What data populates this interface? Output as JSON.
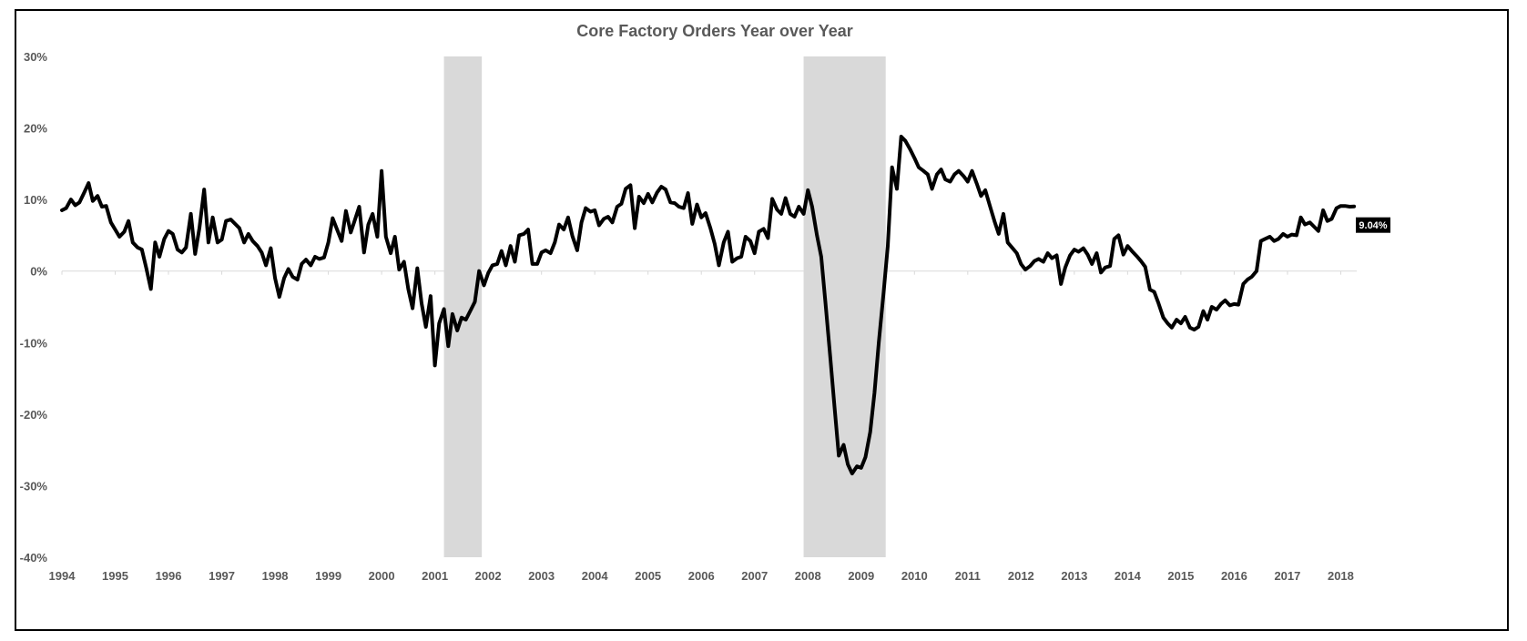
{
  "chart_data": {
    "type": "line",
    "title": "Core Factory Orders Year over Year",
    "xlabel": "",
    "ylabel": "",
    "ylim": [
      -40,
      30
    ],
    "y_ticks": [
      "30%",
      "20%",
      "10%",
      "0%",
      "-10%",
      "-20%",
      "-30%",
      "-40%"
    ],
    "x_ticks": [
      "1994",
      "1995",
      "1996",
      "1997",
      "1998",
      "1999",
      "2000",
      "2001",
      "2002",
      "2003",
      "2004",
      "2005",
      "2006",
      "2007",
      "2008",
      "2009",
      "2010",
      "2011",
      "2012",
      "2013",
      "2014",
      "2015",
      "2016",
      "2017",
      "2018"
    ],
    "xlim": [
      1994.0,
      2018.3
    ],
    "grid": false,
    "legend": "none",
    "line_color": "#000000",
    "recession_color": "#d9d9d9",
    "recessions": [
      [
        2001.17,
        2001.88
      ],
      [
        2007.92,
        2009.46
      ]
    ],
    "last_value_label": "9.04%",
    "series": [
      {
        "x": [
          1994.0,
          1994.08,
          1994.17,
          1994.25,
          1994.33,
          1994.42,
          1994.5,
          1994.58,
          1994.67,
          1994.75,
          1994.83,
          1994.92,
          1995.0,
          1995.08,
          1995.17,
          1995.25,
          1995.33,
          1995.42,
          1995.5,
          1995.58,
          1995.67,
          1995.75,
          1995.83,
          1995.92,
          1996.0,
          1996.08,
          1996.17,
          1996.25,
          1996.33,
          1996.42,
          1996.5,
          1996.58,
          1996.67,
          1996.75,
          1996.83,
          1996.92,
          1997.0,
          1997.08,
          1997.17,
          1997.25,
          1997.33,
          1997.42,
          1997.5,
          1997.58,
          1997.67,
          1997.75,
          1997.83,
          1997.92,
          1998.0,
          1998.08,
          1998.17,
          1998.25,
          1998.33,
          1998.42,
          1998.5,
          1998.58,
          1998.67,
          1998.75,
          1998.83,
          1998.92,
          1999.0,
          1999.08,
          1999.17,
          1999.25,
          1999.33,
          1999.42,
          1999.5,
          1999.58,
          1999.67,
          1999.75,
          1999.83,
          1999.92,
          2000.0,
          2000.08,
          2000.17,
          2000.25,
          2000.33,
          2000.42,
          2000.5,
          2000.58,
          2000.67,
          2000.75,
          2000.83,
          2000.92,
          2001.0,
          2001.08,
          2001.17,
          2001.25,
          2001.33,
          2001.42,
          2001.5,
          2001.58,
          2001.67,
          2001.75,
          2001.83,
          2001.92,
          2002.0,
          2002.08,
          2002.17,
          2002.25,
          2002.33,
          2002.42,
          2002.5,
          2002.58,
          2002.67,
          2002.75,
          2002.83,
          2002.92,
          2003.0,
          2003.08,
          2003.17,
          2003.25,
          2003.33,
          2003.42,
          2003.5,
          2003.58,
          2003.67,
          2003.75,
          2003.83,
          2003.92,
          2004.0,
          2004.08,
          2004.17,
          2004.25,
          2004.33,
          2004.42,
          2004.5,
          2004.58,
          2004.67,
          2004.75,
          2004.83,
          2004.92,
          2005.0,
          2005.08,
          2005.17,
          2005.25,
          2005.33,
          2005.42,
          2005.5,
          2005.58,
          2005.67,
          2005.75,
          2005.83,
          2005.92,
          2006.0,
          2006.08,
          2006.17,
          2006.25,
          2006.33,
          2006.42,
          2006.5,
          2006.58,
          2006.67,
          2006.75,
          2006.83,
          2006.92,
          2007.0,
          2007.08,
          2007.17,
          2007.25,
          2007.33,
          2007.42,
          2007.5,
          2007.58,
          2007.67,
          2007.75,
          2007.83,
          2007.92,
          2008.0,
          2008.08,
          2008.17,
          2008.25,
          2008.33,
          2008.42,
          2008.5,
          2008.58,
          2008.67,
          2008.75,
          2008.83,
          2008.92,
          2009.0,
          2009.08,
          2009.17,
          2009.25,
          2009.33,
          2009.42,
          2009.5,
          2009.58,
          2009.67,
          2009.75,
          2009.83,
          2009.92,
          2010.0,
          2010.08,
          2010.17,
          2010.25,
          2010.33,
          2010.42,
          2010.5,
          2010.58,
          2010.67,
          2010.75,
          2010.83,
          2010.92,
          2011.0,
          2011.08,
          2011.17,
          2011.25,
          2011.33,
          2011.42,
          2011.5,
          2011.58,
          2011.67,
          2011.75,
          2011.83,
          2011.92,
          2012.0,
          2012.08,
          2012.17,
          2012.25,
          2012.33,
          2012.42,
          2012.5,
          2012.58,
          2012.67,
          2012.75,
          2012.83,
          2012.92,
          2013.0,
          2013.08,
          2013.17,
          2013.25,
          2013.33,
          2013.42,
          2013.5,
          2013.58,
          2013.67,
          2013.75,
          2013.83,
          2013.92,
          2014.0,
          2014.08,
          2014.17,
          2014.25,
          2014.33,
          2014.42,
          2014.5,
          2014.58,
          2014.67,
          2014.75,
          2014.83,
          2014.92,
          2015.0,
          2015.08,
          2015.17,
          2015.25,
          2015.33,
          2015.42,
          2015.5,
          2015.58,
          2015.67,
          2015.75,
          2015.83,
          2015.92,
          2016.0,
          2016.08,
          2016.17,
          2016.25,
          2016.33,
          2016.42,
          2016.5,
          2016.58,
          2016.67,
          2016.75,
          2016.83,
          2016.92,
          2017.0,
          2017.08,
          2017.17,
          2017.25,
          2017.33,
          2017.42,
          2017.5,
          2017.58,
          2017.67,
          2017.75,
          2017.83,
          2017.92,
          2018.0,
          2018.08,
          2018.17,
          2018.25
        ],
        "y": [
          8.5,
          8.8,
          10.0,
          9.2,
          9.6,
          11.0,
          12.3,
          9.8,
          10.5,
          9.0,
          9.1,
          6.8,
          5.8,
          4.8,
          5.5,
          7.0,
          4.0,
          3.3,
          3.0,
          0.5,
          -2.5,
          4.0,
          2.0,
          4.5,
          5.6,
          5.2,
          3.0,
          2.6,
          3.3,
          8.0,
          2.4,
          6.0,
          11.4,
          4.0,
          7.5,
          4.0,
          4.4,
          7.0,
          7.2,
          6.6,
          6.0,
          4.0,
          5.2,
          4.2,
          3.5,
          2.6,
          0.8,
          3.2,
          -1.0,
          -3.6,
          -1.0,
          0.3,
          -0.8,
          -1.2,
          1.0,
          1.6,
          0.8,
          2.0,
          1.7,
          1.9,
          4.0,
          7.4,
          5.7,
          4.2,
          8.4,
          5.4,
          7.2,
          9.0,
          2.6,
          6.5,
          8.0,
          4.8,
          14.0,
          4.8,
          2.5,
          4.8,
          0.2,
          1.3,
          -2.5,
          -5.2,
          0.4,
          -4.5,
          -7.8,
          -3.5,
          -13.2,
          -7.3,
          -5.3,
          -10.5,
          -6.0,
          -8.3,
          -6.5,
          -6.8,
          -5.5,
          -4.3,
          0.0,
          -2.0,
          -0.3,
          0.8,
          1.0,
          2.8,
          0.8,
          3.5,
          1.3,
          5.0,
          5.2,
          5.8,
          1.0,
          1.0,
          2.6,
          2.9,
          2.5,
          4.0,
          6.5,
          5.8,
          7.5,
          4.9,
          2.9,
          6.8,
          8.8,
          8.3,
          8.5,
          6.4,
          7.3,
          7.6,
          6.8,
          9.0,
          9.4,
          11.5,
          12.0,
          6.0,
          10.4,
          9.5,
          10.8,
          9.6,
          11.0,
          11.8,
          11.4,
          9.6,
          9.5,
          9.0,
          8.8,
          10.9,
          6.6,
          9.3,
          7.5,
          8.1,
          6.0,
          3.8,
          0.8,
          4.0,
          5.5,
          1.3,
          1.8,
          2.0,
          4.8,
          4.2,
          2.5,
          5.5,
          5.9,
          4.6,
          10.1,
          8.6,
          8.0,
          10.2,
          8.0,
          7.6,
          9.0,
          8.0,
          11.3,
          9.0,
          5.0,
          2.0,
          -4.5,
          -12.0,
          -19.0,
          -25.8,
          -24.3,
          -27.0,
          -28.3,
          -27.3,
          -27.5,
          -26.0,
          -22.5,
          -17.0,
          -10.0,
          -3.0,
          3.5,
          14.5,
          11.5,
          18.8,
          18.2,
          17.0,
          15.8,
          14.5,
          14.0,
          13.5,
          11.5,
          13.5,
          14.2,
          12.8,
          12.5,
          13.5,
          14.0,
          13.3,
          12.5,
          14.0,
          12.2,
          10.5,
          11.3,
          9.0,
          7.0,
          5.2,
          8.0,
          4.0,
          3.3,
          2.5,
          1.0,
          0.2,
          0.7,
          1.4,
          1.7,
          1.3,
          2.5,
          1.8,
          2.2,
          -1.8,
          0.5,
          2.2,
          3.0,
          2.7,
          3.2,
          2.3,
          1.0,
          2.5,
          -0.2,
          0.5,
          0.7,
          4.5,
          5.0,
          2.3,
          3.5,
          2.8,
          2.1,
          1.4,
          0.6,
          -2.6,
          -2.9,
          -4.5,
          -6.5,
          -7.3,
          -7.9,
          -6.8,
          -7.3,
          -6.4,
          -7.9,
          -8.2,
          -7.8,
          -5.6,
          -6.8,
          -5.0,
          -5.4,
          -4.6,
          -4.1,
          -4.8,
          -4.6,
          -4.7,
          -1.8,
          -1.2,
          -0.8,
          0.0,
          4.2,
          4.5,
          4.8,
          4.2,
          4.5,
          5.2,
          4.8,
          5.1,
          5.0,
          7.5,
          6.5,
          6.8,
          6.2,
          5.6,
          8.5,
          7.0,
          7.3,
          8.8,
          9.1,
          9.1,
          9.0,
          9.04
        ]
      }
    ]
  }
}
